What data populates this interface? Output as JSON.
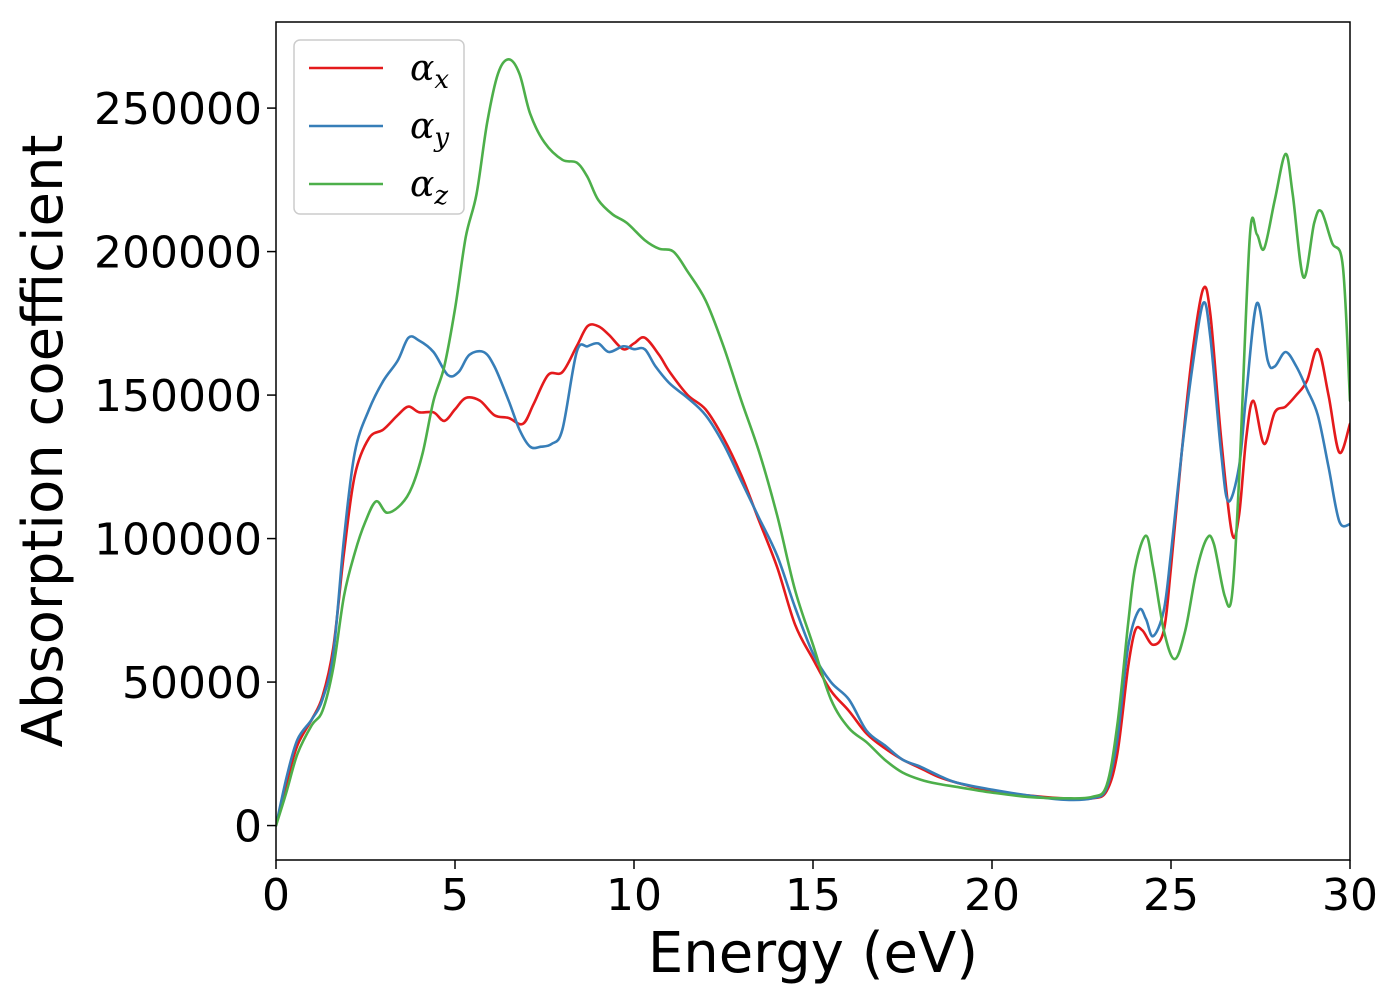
{
  "chart_data": {
    "type": "line",
    "xlabel": "Energy (eV)",
    "ylabel": "Absorption coefficient",
    "xlim": [
      0,
      30
    ],
    "ylim": [
      -12000,
      280000
    ],
    "xticks": [
      0,
      5,
      10,
      15,
      20,
      25,
      30
    ],
    "yticks": [
      0,
      50000,
      100000,
      150000,
      200000,
      250000
    ],
    "grid": false,
    "legend_position": "top-left",
    "series": [
      {
        "name": "α",
        "subscript": "x",
        "color": "#e41a1c",
        "points": [
          [
            0,
            0
          ],
          [
            0.3,
            15000
          ],
          [
            0.6,
            28000
          ],
          [
            1,
            37000
          ],
          [
            1.3,
            45000
          ],
          [
            1.6,
            62000
          ],
          [
            1.9,
            95000
          ],
          [
            2.2,
            122000
          ],
          [
            2.6,
            135000
          ],
          [
            3.0,
            138000
          ],
          [
            3.4,
            143000
          ],
          [
            3.7,
            146000
          ],
          [
            4.0,
            144000
          ],
          [
            4.4,
            144000
          ],
          [
            4.7,
            141000
          ],
          [
            5.0,
            145000
          ],
          [
            5.3,
            149000
          ],
          [
            5.7,
            148000
          ],
          [
            6.1,
            143000
          ],
          [
            6.5,
            142000
          ],
          [
            6.9,
            140000
          ],
          [
            7.2,
            147000
          ],
          [
            7.6,
            157000
          ],
          [
            8.0,
            158000
          ],
          [
            8.4,
            167000
          ],
          [
            8.7,
            174000
          ],
          [
            9.0,
            174000
          ],
          [
            9.3,
            171000
          ],
          [
            9.7,
            166000
          ],
          [
            10.0,
            168000
          ],
          [
            10.3,
            170000
          ],
          [
            10.7,
            164000
          ],
          [
            11.0,
            158000
          ],
          [
            11.5,
            150000
          ],
          [
            12.0,
            145000
          ],
          [
            12.5,
            135000
          ],
          [
            13.0,
            122000
          ],
          [
            13.5,
            106000
          ],
          [
            14.0,
            90000
          ],
          [
            14.5,
            70000
          ],
          [
            15.0,
            58000
          ],
          [
            15.5,
            47000
          ],
          [
            16.0,
            40000
          ],
          [
            16.5,
            32000
          ],
          [
            17.0,
            27000
          ],
          [
            17.5,
            23000
          ],
          [
            18.0,
            20000
          ],
          [
            18.5,
            17000
          ],
          [
            19.0,
            15000
          ],
          [
            20.0,
            12000
          ],
          [
            21.0,
            10500
          ],
          [
            22.0,
            9500
          ],
          [
            22.8,
            9500
          ],
          [
            23.2,
            12000
          ],
          [
            23.5,
            25000
          ],
          [
            23.8,
            55000
          ],
          [
            24.0,
            68000
          ],
          [
            24.2,
            68000
          ],
          [
            24.5,
            63000
          ],
          [
            24.8,
            68000
          ],
          [
            25.0,
            90000
          ],
          [
            25.3,
            130000
          ],
          [
            25.6,
            165000
          ],
          [
            25.9,
            187000
          ],
          [
            26.1,
            178000
          ],
          [
            26.4,
            135000
          ],
          [
            26.7,
            102000
          ],
          [
            26.9,
            108000
          ],
          [
            27.1,
            135000
          ],
          [
            27.3,
            148000
          ],
          [
            27.6,
            133000
          ],
          [
            27.9,
            144000
          ],
          [
            28.2,
            146000
          ],
          [
            28.5,
            150000
          ],
          [
            28.8,
            155000
          ],
          [
            29.1,
            166000
          ],
          [
            29.4,
            150000
          ],
          [
            29.7,
            130000
          ],
          [
            30.0,
            140000
          ]
        ]
      },
      {
        "name": "α",
        "subscript": "y",
        "color": "#377eb8",
        "points": [
          [
            0,
            0
          ],
          [
            0.3,
            17000
          ],
          [
            0.6,
            30000
          ],
          [
            1,
            37000
          ],
          [
            1.3,
            44000
          ],
          [
            1.6,
            60000
          ],
          [
            1.9,
            100000
          ],
          [
            2.2,
            130000
          ],
          [
            2.6,
            145000
          ],
          [
            3.0,
            155000
          ],
          [
            3.4,
            162000
          ],
          [
            3.7,
            170000
          ],
          [
            4.0,
            169000
          ],
          [
            4.4,
            165000
          ],
          [
            4.8,
            157000
          ],
          [
            5.1,
            158000
          ],
          [
            5.4,
            164000
          ],
          [
            5.8,
            165000
          ],
          [
            6.1,
            160000
          ],
          [
            6.5,
            148000
          ],
          [
            6.8,
            138000
          ],
          [
            7.1,
            132000
          ],
          [
            7.4,
            132000
          ],
          [
            7.7,
            133000
          ],
          [
            8.0,
            138000
          ],
          [
            8.4,
            165000
          ],
          [
            8.7,
            167000
          ],
          [
            9.0,
            168000
          ],
          [
            9.3,
            165000
          ],
          [
            9.7,
            167000
          ],
          [
            10.0,
            166000
          ],
          [
            10.3,
            166000
          ],
          [
            10.6,
            160000
          ],
          [
            11.0,
            154000
          ],
          [
            11.5,
            149000
          ],
          [
            12.0,
            143000
          ],
          [
            12.5,
            133000
          ],
          [
            13.0,
            120000
          ],
          [
            13.5,
            107000
          ],
          [
            14.0,
            94000
          ],
          [
            14.5,
            76000
          ],
          [
            15.0,
            60000
          ],
          [
            15.5,
            50000
          ],
          [
            16.0,
            44000
          ],
          [
            16.5,
            33000
          ],
          [
            17.0,
            28000
          ],
          [
            17.5,
            23000
          ],
          [
            18.0,
            20500
          ],
          [
            18.5,
            17500
          ],
          [
            19.0,
            15000
          ],
          [
            20.0,
            12500
          ],
          [
            21.0,
            10500
          ],
          [
            22.0,
            9000
          ],
          [
            22.8,
            9500
          ],
          [
            23.2,
            13000
          ],
          [
            23.5,
            30000
          ],
          [
            23.8,
            62000
          ],
          [
            24.1,
            75000
          ],
          [
            24.3,
            72000
          ],
          [
            24.5,
            66000
          ],
          [
            24.8,
            75000
          ],
          [
            25.0,
            95000
          ],
          [
            25.3,
            130000
          ],
          [
            25.6,
            160000
          ],
          [
            25.9,
            182000
          ],
          [
            26.1,
            170000
          ],
          [
            26.4,
            130000
          ],
          [
            26.6,
            113000
          ],
          [
            26.9,
            125000
          ],
          [
            27.1,
            150000
          ],
          [
            27.4,
            182000
          ],
          [
            27.7,
            162000
          ],
          [
            27.9,
            160000
          ],
          [
            28.2,
            165000
          ],
          [
            28.5,
            160000
          ],
          [
            28.8,
            152000
          ],
          [
            29.1,
            143000
          ],
          [
            29.4,
            125000
          ],
          [
            29.7,
            106000
          ],
          [
            30.0,
            105000
          ]
        ]
      },
      {
        "name": "α",
        "subscript": "z",
        "color": "#4daf4a",
        "points": [
          [
            0,
            0
          ],
          [
            0.3,
            12000
          ],
          [
            0.6,
            25000
          ],
          [
            1,
            35000
          ],
          [
            1.3,
            40000
          ],
          [
            1.6,
            55000
          ],
          [
            1.9,
            80000
          ],
          [
            2.2,
            95000
          ],
          [
            2.5,
            106000
          ],
          [
            2.8,
            113000
          ],
          [
            3.1,
            109000
          ],
          [
            3.5,
            112000
          ],
          [
            3.8,
            118000
          ],
          [
            4.1,
            130000
          ],
          [
            4.4,
            148000
          ],
          [
            4.7,
            160000
          ],
          [
            5.0,
            180000
          ],
          [
            5.3,
            205000
          ],
          [
            5.6,
            220000
          ],
          [
            5.9,
            245000
          ],
          [
            6.2,
            262000
          ],
          [
            6.5,
            267000
          ],
          [
            6.8,
            262000
          ],
          [
            7.1,
            248000
          ],
          [
            7.5,
            238000
          ],
          [
            8.0,
            232000
          ],
          [
            8.4,
            231000
          ],
          [
            8.7,
            226000
          ],
          [
            9.0,
            218000
          ],
          [
            9.4,
            213000
          ],
          [
            9.8,
            210000
          ],
          [
            10.3,
            204000
          ],
          [
            10.7,
            201000
          ],
          [
            11.1,
            200000
          ],
          [
            11.5,
            193000
          ],
          [
            12.0,
            183000
          ],
          [
            12.5,
            167000
          ],
          [
            13.0,
            148000
          ],
          [
            13.5,
            130000
          ],
          [
            14.0,
            108000
          ],
          [
            14.5,
            82000
          ],
          [
            15.0,
            63000
          ],
          [
            15.5,
            44000
          ],
          [
            16.0,
            34000
          ],
          [
            16.5,
            29000
          ],
          [
            17.0,
            23000
          ],
          [
            17.5,
            18500
          ],
          [
            18.0,
            16000
          ],
          [
            18.5,
            14500
          ],
          [
            19.0,
            13500
          ],
          [
            20.0,
            11500
          ],
          [
            21.0,
            10000
          ],
          [
            22.0,
            9500
          ],
          [
            22.8,
            10000
          ],
          [
            23.2,
            14000
          ],
          [
            23.5,
            35000
          ],
          [
            23.8,
            70000
          ],
          [
            24.0,
            90000
          ],
          [
            24.3,
            101000
          ],
          [
            24.5,
            90000
          ],
          [
            24.8,
            68000
          ],
          [
            25.1,
            58000
          ],
          [
            25.4,
            68000
          ],
          [
            25.7,
            88000
          ],
          [
            26.0,
            100000
          ],
          [
            26.2,
            98000
          ],
          [
            26.5,
            80000
          ],
          [
            26.7,
            80000
          ],
          [
            26.9,
            120000
          ],
          [
            27.2,
            205000
          ],
          [
            27.4,
            206000
          ],
          [
            27.6,
            201000
          ],
          [
            27.9,
            218000
          ],
          [
            28.2,
            234000
          ],
          [
            28.4,
            220000
          ],
          [
            28.7,
            191000
          ],
          [
            29.0,
            210000
          ],
          [
            29.2,
            214000
          ],
          [
            29.5,
            203000
          ],
          [
            29.8,
            195000
          ],
          [
            30.0,
            148000
          ]
        ]
      }
    ]
  }
}
